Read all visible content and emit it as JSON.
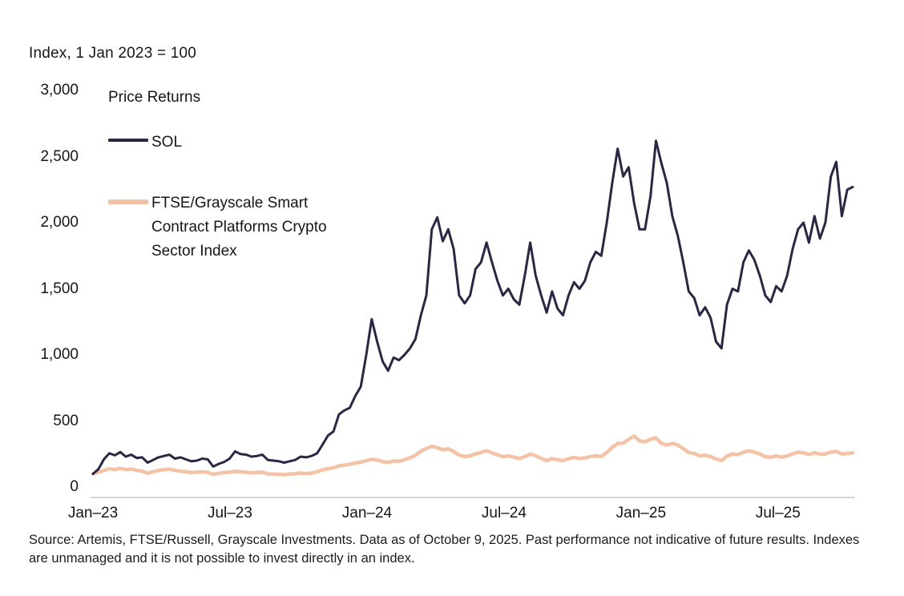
{
  "header": {
    "title": "Index, 1 Jan 2023 = 100"
  },
  "legend": {
    "heading": "Price Returns",
    "items": [
      {
        "key": "sol",
        "label": "SOL",
        "color": "#2a2744"
      },
      {
        "key": "ftse",
        "label": "FTSE/Grayscale Smart Contract Platforms Crypto Sector Index",
        "color": "#f4c2a5"
      }
    ]
  },
  "footer": {
    "source": "Source: Artemis, FTSE/Russell, Grayscale Investments. Data as of October 9, 2025. Past performance not indicative of future results. Indexes are unmanaged and it is not possible to invest directly in an index."
  },
  "chart_data": {
    "type": "line",
    "title": "Index, 1 Jan 2023 = 100",
    "subtitle": "Price Returns",
    "xlabel": "",
    "ylabel": "Index, 1 Jan 2023 = 100",
    "x_unit": "months since 1 Jan 2023 (weekly samples, Jan 2023 - Oct 9 2025)",
    "x_range": [
      0,
      33.27
    ],
    "ylim": [
      0,
      3000
    ],
    "grid": false,
    "legend_position": "upper-left-inside",
    "yticks": [
      {
        "value": 3000,
        "label": "3,000"
      },
      {
        "value": 2500,
        "label": "2,500"
      },
      {
        "value": 2000,
        "label": "2,000"
      },
      {
        "value": 1500,
        "label": "1,500"
      },
      {
        "value": 1000,
        "label": "1,000"
      },
      {
        "value": 500,
        "label": "500"
      },
      {
        "value": 0,
        "label": "0"
      }
    ],
    "xticks": [
      {
        "month": 0,
        "label": "Jan–23"
      },
      {
        "month": 6,
        "label": "Jul–23"
      },
      {
        "month": 12,
        "label": "Jan–24"
      },
      {
        "month": 18,
        "label": "Jul–24"
      },
      {
        "month": 24,
        "label": "Jan–25"
      },
      {
        "month": 30,
        "label": "Jul–25"
      }
    ],
    "series": [
      {
        "key": "sol",
        "name": "SOL",
        "color": "#2a2744",
        "width": 3,
        "values": [
          100,
          135,
          210,
          255,
          240,
          265,
          230,
          245,
          220,
          225,
          185,
          205,
          225,
          235,
          245,
          215,
          225,
          210,
          195,
          200,
          215,
          210,
          155,
          175,
          190,
          215,
          270,
          250,
          245,
          230,
          235,
          245,
          205,
          200,
          195,
          185,
          195,
          205,
          230,
          225,
          235,
          255,
          320,
          390,
          420,
          550,
          580,
          600,
          690,
          760,
          1000,
          1270,
          1100,
          950,
          880,
          980,
          960,
          1000,
          1050,
          1120,
          1300,
          1450,
          1950,
          2040,
          1860,
          1950,
          1800,
          1450,
          1390,
          1450,
          1650,
          1700,
          1850,
          1700,
          1560,
          1450,
          1500,
          1420,
          1380,
          1600,
          1850,
          1600,
          1450,
          1320,
          1480,
          1350,
          1300,
          1450,
          1550,
          1500,
          1560,
          1700,
          1780,
          1750,
          2000,
          2300,
          2560,
          2350,
          2420,
          2150,
          1950,
          1950,
          2200,
          2620,
          2450,
          2300,
          2050,
          1900,
          1700,
          1480,
          1430,
          1300,
          1360,
          1280,
          1100,
          1050,
          1380,
          1500,
          1480,
          1700,
          1790,
          1720,
          1600,
          1450,
          1400,
          1520,
          1480,
          1600,
          1800,
          1950,
          2000,
          1850,
          2050,
          1880,
          2000,
          2350,
          2460,
          2050,
          2250,
          2270
        ]
      },
      {
        "key": "ftse",
        "name": "FTSE/Grayscale Smart Contract Platforms Crypto Sector Index",
        "color": "#f4c2a5",
        "width": 4.5,
        "values": [
          100,
          112,
          125,
          138,
          132,
          142,
          132,
          136,
          126,
          120,
          105,
          115,
          126,
          132,
          136,
          126,
          120,
          116,
          110,
          112,
          116,
          112,
          96,
          104,
          110,
          112,
          120,
          116,
          112,
          108,
          110,
          112,
          100,
          98,
          96,
          94,
          98,
          100,
          106,
          102,
          106,
          116,
          130,
          140,
          146,
          160,
          166,
          172,
          182,
          188,
          200,
          210,
          205,
          192,
          186,
          196,
          196,
          206,
          222,
          240,
          272,
          292,
          308,
          298,
          282,
          290,
          268,
          242,
          230,
          236,
          252,
          262,
          275,
          258,
          244,
          230,
          236,
          226,
          216,
          230,
          250,
          236,
          216,
          200,
          216,
          206,
          200,
          214,
          224,
          216,
          220,
          230,
          236,
          232,
          262,
          300,
          330,
          332,
          362,
          385,
          350,
          342,
          362,
          372,
          330,
          318,
          330,
          318,
          290,
          262,
          254,
          236,
          240,
          230,
          212,
          200,
          234,
          250,
          246,
          264,
          274,
          264,
          250,
          230,
          226,
          236,
          226,
          236,
          250,
          264,
          258,
          246,
          260,
          250,
          250,
          264,
          270,
          250,
          254,
          258
        ]
      }
    ]
  }
}
